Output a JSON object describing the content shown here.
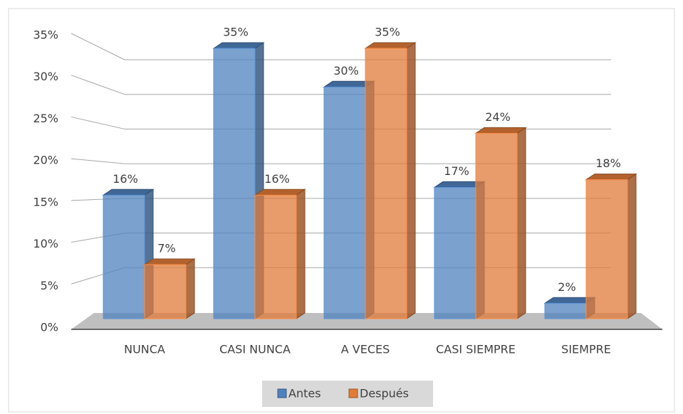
{
  "chart_data": {
    "type": "bar3d",
    "categories": [
      "NUNCA",
      "CASI NUNCA",
      "A VECES",
      "CASI SIEMPRE",
      "SIEMPRE"
    ],
    "series": [
      {
        "name": "Antes",
        "color": "#4f81bd",
        "values": [
          16,
          35,
          30,
          17,
          2
        ],
        "value_labels": [
          "16%",
          "35%",
          "30%",
          "17%",
          "2%"
        ]
      },
      {
        "name": "Después",
        "color": "#e07b39",
        "values": [
          7,
          16,
          35,
          24,
          18
        ],
        "value_labels": [
          "7%",
          "16%",
          "35%",
          "24%",
          "18%"
        ]
      }
    ],
    "ylim": [
      0,
      35
    ],
    "yticks": [
      {
        "value": 0,
        "label": "0%"
      },
      {
        "value": 5,
        "label": "5%"
      },
      {
        "value": 10,
        "label": "10%"
      },
      {
        "value": 15,
        "label": "15%"
      },
      {
        "value": 20,
        "label": "20%"
      },
      {
        "value": 25,
        "label": "25%"
      },
      {
        "value": 30,
        "label": "30%"
      },
      {
        "value": 35,
        "label": "35%"
      }
    ],
    "grid": true,
    "legend": "bottom"
  }
}
